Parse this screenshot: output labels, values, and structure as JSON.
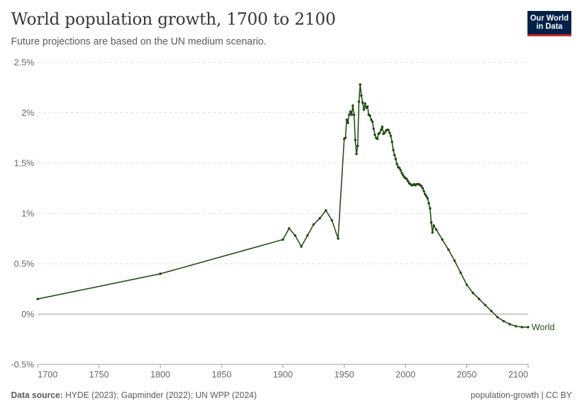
{
  "header": {
    "title": "World population growth, 1700 to 2100",
    "subtitle": "Future projections are based on the UN medium scenario."
  },
  "logo": {
    "line1": "Our World",
    "line2": "in Data"
  },
  "footer": {
    "source_label": "Data source:",
    "source_text": "HYDE (2023); Gapminder (2022); UN WPP (2024)",
    "license": "population-growth | CC BY"
  },
  "colors": {
    "series": "#1f4d12",
    "grid": "#dcdcdc",
    "baseline": "#9a9a9a",
    "brand_bg": "#002147",
    "brand_accent": "#ce261e"
  },
  "chart_data": {
    "type": "line",
    "title": "World population growth, 1700 to 2100",
    "subtitle": "Future projections are based on the UN medium scenario.",
    "xlabel": "",
    "ylabel": "",
    "xlim": [
      1700,
      2100
    ],
    "ylim": [
      -0.5,
      2.5
    ],
    "x_ticks": [
      1700,
      1750,
      1800,
      1850,
      1900,
      1950,
      2000,
      2050,
      2100
    ],
    "x_tick_labels": [
      "1700",
      "1750",
      "1800",
      "1850",
      "1900",
      "1950",
      "2000",
      "2050",
      "2100"
    ],
    "y_ticks": [
      -0.5,
      0,
      0.5,
      1,
      1.5,
      2,
      2.5
    ],
    "y_tick_labels": [
      "-0.5%",
      "0%",
      "0.5%",
      "1%",
      "1.5%",
      "2%",
      "2.5%"
    ],
    "grid": true,
    "legend": "end-of-line label",
    "series": [
      {
        "name": "World",
        "x": [
          1700,
          1800,
          1900,
          1905,
          1910,
          1915,
          1920,
          1925,
          1930,
          1935,
          1940,
          1945,
          1950,
          1951,
          1952,
          1953,
          1954,
          1955,
          1956,
          1957,
          1958,
          1959,
          1960,
          1961,
          1962,
          1963,
          1964,
          1965,
          1966,
          1967,
          1968,
          1969,
          1970,
          1971,
          1972,
          1973,
          1974,
          1975,
          1976,
          1977,
          1978,
          1979,
          1980,
          1981,
          1982,
          1983,
          1984,
          1985,
          1986,
          1987,
          1988,
          1989,
          1990,
          1991,
          1992,
          1993,
          1994,
          1995,
          1996,
          1997,
          1998,
          1999,
          2000,
          2001,
          2002,
          2003,
          2004,
          2005,
          2006,
          2007,
          2008,
          2009,
          2010,
          2011,
          2012,
          2013,
          2014,
          2015,
          2016,
          2017,
          2018,
          2019,
          2020,
          2021,
          2022,
          2023,
          2025,
          2030,
          2035,
          2040,
          2045,
          2050,
          2055,
          2060,
          2065,
          2070,
          2075,
          2080,
          2085,
          2090,
          2095,
          2100
        ],
        "values": [
          0.15,
          0.4,
          0.74,
          0.85,
          0.78,
          0.67,
          0.78,
          0.89,
          0.95,
          1.03,
          0.93,
          0.75,
          1.74,
          1.75,
          1.93,
          1.9,
          1.98,
          2.01,
          1.98,
          2.07,
          1.98,
          1.73,
          1.59,
          1.67,
          2.11,
          2.28,
          2.17,
          2.1,
          2.03,
          2.09,
          2.05,
          2.06,
          1.98,
          1.97,
          1.93,
          1.91,
          1.84,
          1.78,
          1.75,
          1.74,
          1.79,
          1.8,
          1.83,
          1.86,
          1.79,
          1.8,
          1.82,
          1.83,
          1.83,
          1.8,
          1.77,
          1.71,
          1.63,
          1.58,
          1.54,
          1.49,
          1.46,
          1.45,
          1.43,
          1.4,
          1.38,
          1.36,
          1.35,
          1.34,
          1.32,
          1.3,
          1.29,
          1.28,
          1.28,
          1.29,
          1.28,
          1.29,
          1.29,
          1.29,
          1.28,
          1.27,
          1.25,
          1.22,
          1.19,
          1.17,
          1.15,
          1.1,
          1.05,
          0.91,
          0.81,
          0.88,
          0.84,
          0.74,
          0.64,
          0.53,
          0.41,
          0.29,
          0.21,
          0.15,
          0.09,
          0.03,
          -0.03,
          -0.07,
          -0.1,
          -0.12,
          -0.13,
          -0.13
        ]
      }
    ]
  }
}
